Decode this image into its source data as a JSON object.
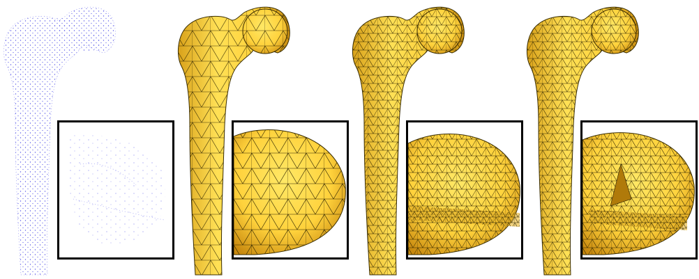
{
  "figure": {
    "panels": [
      {
        "id": "point-cloud",
        "render_style": "points",
        "color": "#5a5ae6"
      },
      {
        "id": "mesh-1",
        "render_style": "triangle-mesh",
        "fill_color": "#ffd23c",
        "edge_color": "#2b2200",
        "mesh_density": "coarse"
      },
      {
        "id": "mesh-2",
        "render_style": "triangle-mesh",
        "fill_color": "#ffd23c",
        "edge_color": "#2b2200",
        "mesh_density": "dense"
      },
      {
        "id": "mesh-3",
        "render_style": "triangle-mesh",
        "fill_color": "#ffd23c",
        "edge_color": "#2b2200",
        "mesh_density": "dense-with-artifacts"
      }
    ],
    "inset_frame_color": "#000000",
    "background": "#ffffff"
  }
}
